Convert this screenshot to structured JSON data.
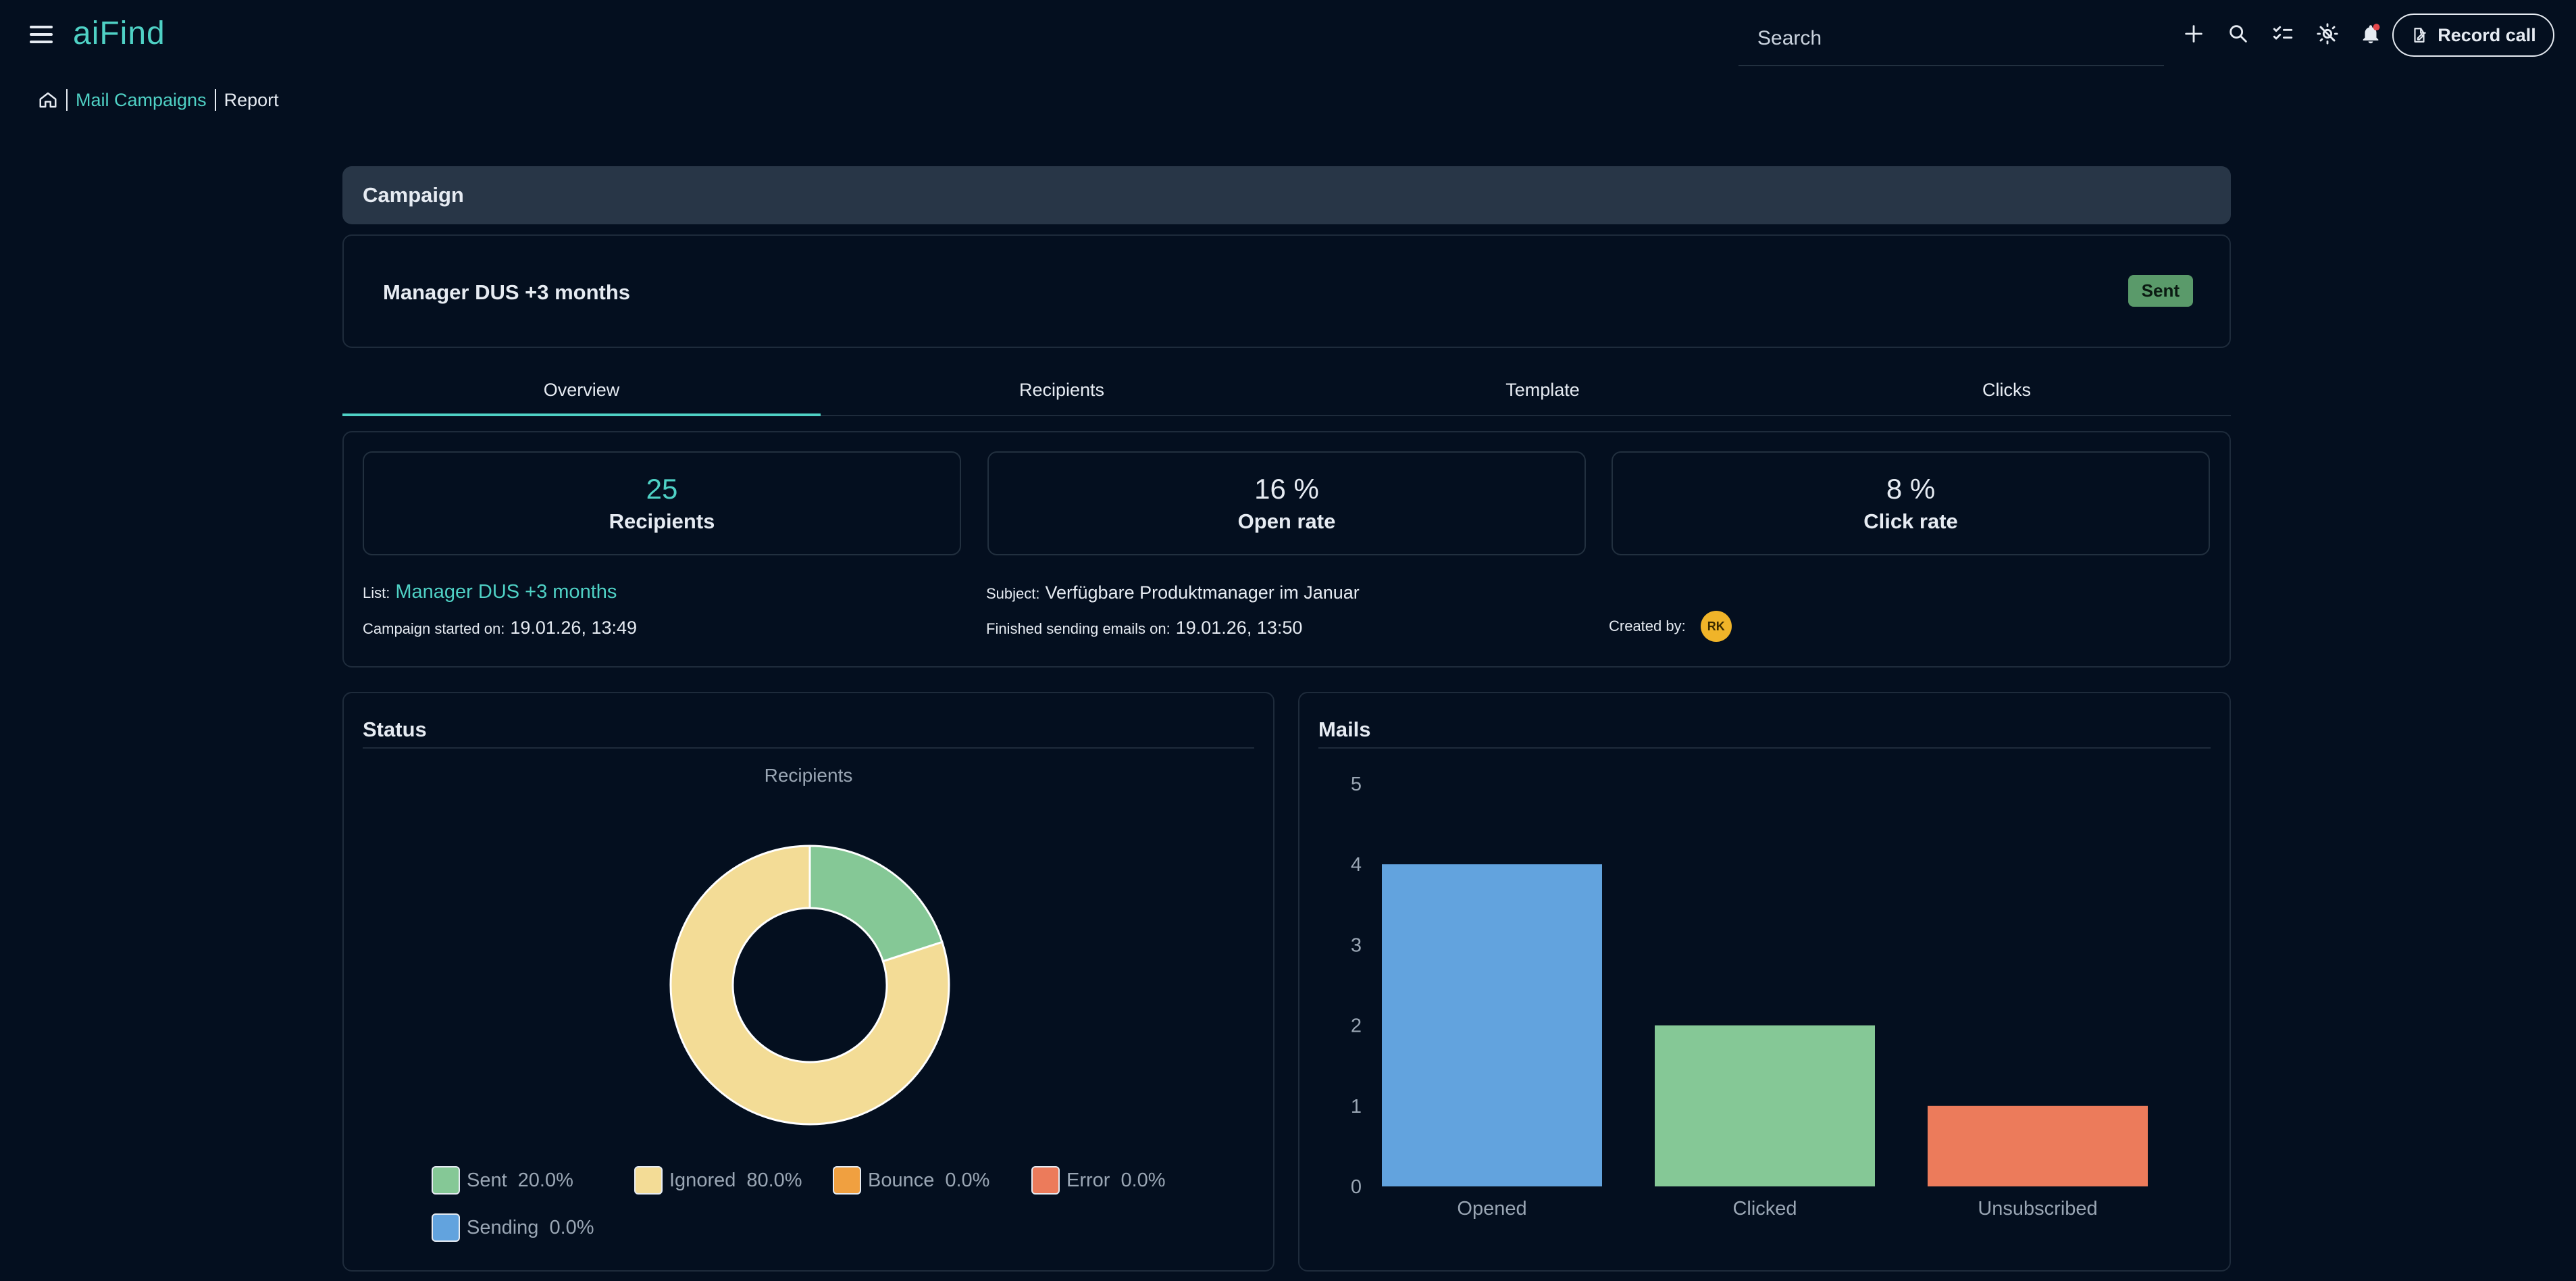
{
  "app": {
    "logo": "aiFind"
  },
  "topbar": {
    "search_placeholder": "Search",
    "record_call_label": "Record call"
  },
  "breadcrumb": {
    "items": [
      "Mail Campaigns",
      "Report"
    ]
  },
  "campaign": {
    "header": "Campaign",
    "name": "Manager DUS +3 months",
    "status": "Sent"
  },
  "tabs": [
    "Overview",
    "Recipients",
    "Template",
    "Clicks"
  ],
  "stats": [
    {
      "value": "25",
      "label": "Recipients"
    },
    {
      "value": "16 %",
      "label": "Open rate"
    },
    {
      "value": "8 %",
      "label": "Click rate"
    }
  ],
  "meta": {
    "list_label": "List:",
    "list_value": "Manager DUS +3 months",
    "started_label": "Campaign started on:",
    "started_value": "19.01.26, 13:49",
    "subject_label": "Subject:",
    "subject_value": "Verfügbare Produktmanager im Januar",
    "finished_label": "Finished sending emails on:",
    "finished_value": "19.01.26, 13:50",
    "created_label": "Created by:",
    "created_initials": "RK"
  },
  "status_panel": {
    "title": "Status",
    "chart_title": "Recipients"
  },
  "mails_panel": {
    "title": "Mails"
  },
  "chart_data": [
    {
      "type": "pie",
      "title": "Recipients",
      "categories": [
        "Sent",
        "Ignored",
        "Bounce",
        "Error",
        "Sending"
      ],
      "values": [
        20.0,
        80.0,
        0.0,
        0.0,
        0.0
      ],
      "labels": [
        "20.0%",
        "80.0%",
        "0.0%",
        "0.0%",
        "0.0%"
      ],
      "colors": [
        "#85c896",
        "#f3dc96",
        "#f0a040",
        "#ec7b5b",
        "#62a3de"
      ],
      "legend": "bottom"
    },
    {
      "type": "bar",
      "categories": [
        "Opened",
        "Clicked",
        "Unsubscribed"
      ],
      "values": [
        4,
        2,
        1
      ],
      "colors": [
        "#62a3de",
        "#85c896",
        "#ec7b5b"
      ],
      "ylim": [
        0,
        5
      ],
      "yticks": [
        0,
        1,
        2,
        3,
        4,
        5
      ],
      "grid": false
    }
  ]
}
